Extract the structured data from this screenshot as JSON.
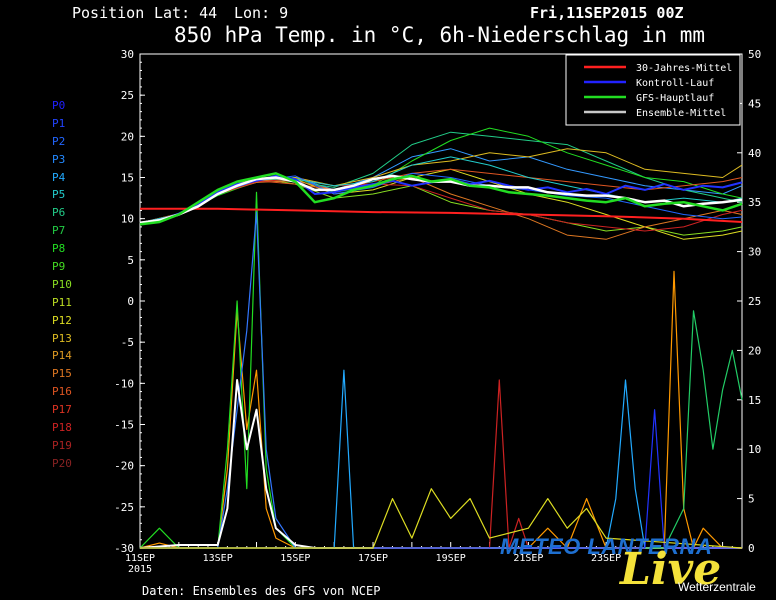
{
  "header": {
    "position_label": "Position",
    "lat_label": "Lat: 44",
    "lon_label": "Lon: 9",
    "date": "Fri,11SEP2015 00Z",
    "title": "850 hPa Temp. in °C, 6h-Niederschlag in mm"
  },
  "footer": {
    "source": "Daten: Ensembles des GFS von NCEP"
  },
  "logo": {
    "text": "METEO LANTERNA",
    "live": "Live",
    "sub": "Wetterzentrale"
  },
  "members": [
    {
      "name": "P0",
      "color": "#2020ff"
    },
    {
      "name": "P1",
      "color": "#2244ff"
    },
    {
      "name": "P2",
      "color": "#2266ff"
    },
    {
      "name": "P3",
      "color": "#2288ff"
    },
    {
      "name": "P4",
      "color": "#22aaff"
    },
    {
      "name": "P5",
      "color": "#22cccc"
    },
    {
      "name": "P6",
      "color": "#22cc88"
    },
    {
      "name": "P7",
      "color": "#22cc44"
    },
    {
      "name": "P8",
      "color": "#22dd22"
    },
    {
      "name": "P9",
      "color": "#44dd22"
    },
    {
      "name": "P10",
      "color": "#88dd22"
    },
    {
      "name": "P11",
      "color": "#bbdd22"
    },
    {
      "name": "P12",
      "color": "#dddd22"
    },
    {
      "name": "P13",
      "color": "#ddbb22"
    },
    {
      "name": "P14",
      "color": "#dd9922"
    },
    {
      "name": "P15",
      "color": "#dd7722"
    },
    {
      "name": "P16",
      "color": "#dd5522"
    },
    {
      "name": "P17",
      "color": "#dd3322"
    },
    {
      "name": "P18",
      "color": "#cc2222"
    },
    {
      "name": "P19",
      "color": "#aa2222"
    },
    {
      "name": "P20",
      "color": "#882222"
    }
  ],
  "chart_data": {
    "type": "line",
    "title": "850 hPa Temp. in °C, 6h-Niederschlag in mm",
    "xlabel": "",
    "ylabel": "",
    "x_tick_labels": [
      "11SEP",
      "13SEP",
      "15SEP",
      "17SEP",
      "19SEP",
      "21SEP",
      "23SEP"
    ],
    "x_tick_sub": "2015",
    "x_tick_days": [
      0,
      2,
      4,
      6,
      8,
      10,
      12
    ],
    "xlim_days": [
      0,
      15.5
    ],
    "y_left_ticks": [
      30,
      25,
      20,
      15,
      10,
      5,
      0,
      -5,
      -10,
      -15,
      -20,
      -25,
      -30
    ],
    "y_left_range": [
      -30,
      30
    ],
    "y_right_ticks": [
      50,
      45,
      40,
      35,
      30,
      25,
      20,
      15,
      10,
      5,
      0
    ],
    "y_right_range": [
      0,
      50
    ],
    "legend": [
      {
        "name": "30-Jahres-Mittel",
        "color": "#ff2020"
      },
      {
        "name": "Kontroll-Lauf",
        "color": "#2222ff"
      },
      {
        "name": "GFS-Hauptlauf",
        "color": "#22dd22"
      },
      {
        "name": "Ensemble-Mittel",
        "color": "#c8c8c8"
      }
    ],
    "legend_position": "top-right",
    "grid": false,
    "series": [
      {
        "name": "30-Jahres-Mittel",
        "color": "#ff2020",
        "width": 2,
        "x": [
          0,
          2,
          4,
          6,
          8,
          10,
          12,
          14,
          15.5
        ],
        "y": [
          11.2,
          11.2,
          11.0,
          10.8,
          10.7,
          10.5,
          10.3,
          10.0,
          9.6
        ]
      },
      {
        "name": "Ensemble-Mittel",
        "color": "#ffffff",
        "width": 2.5,
        "x": [
          0,
          0.5,
          1,
          1.5,
          2,
          2.5,
          3,
          3.5,
          4,
          4.5,
          5,
          5.5,
          6,
          6.5,
          7,
          7.5,
          8,
          8.5,
          9,
          9.5,
          10,
          10.5,
          11,
          11.5,
          12,
          12.5,
          13,
          13.5,
          14,
          14.5,
          15,
          15.5
        ],
        "y": [
          9.5,
          9.8,
          10.5,
          11.5,
          13.0,
          14.0,
          14.8,
          15.0,
          14.5,
          13.5,
          13.5,
          14.0,
          14.8,
          15.2,
          14.8,
          14.5,
          14.5,
          14.0,
          14.0,
          13.8,
          13.8,
          13.2,
          13.0,
          12.8,
          12.8,
          12.5,
          12.0,
          12.2,
          11.5,
          11.8,
          12.0,
          12.3
        ]
      },
      {
        "name": "GFS-Hauptlauf",
        "color": "#22dd22",
        "width": 2.5,
        "x": [
          0,
          0.5,
          1,
          1.5,
          2,
          2.5,
          3,
          3.5,
          4,
          4.5,
          5,
          5.5,
          6,
          6.5,
          7,
          7.5,
          8,
          8.5,
          9,
          9.5,
          10,
          10.5,
          11,
          11.5,
          12,
          12.5,
          13,
          13.5,
          14,
          14.5,
          15,
          15.5
        ],
        "y": [
          9.3,
          9.6,
          10.5,
          12.0,
          13.5,
          14.5,
          15.0,
          15.5,
          14.5,
          12.0,
          12.5,
          13.5,
          14.0,
          14.8,
          15.2,
          14.5,
          14.8,
          14.0,
          13.8,
          13.2,
          13.0,
          12.8,
          12.5,
          12.2,
          12.0,
          12.5,
          11.5,
          11.8,
          12.0,
          11.5,
          11.0,
          11.8
        ]
      },
      {
        "name": "Kontroll-Lauf",
        "color": "#2233ff",
        "width": 2,
        "x": [
          0,
          0.5,
          1,
          1.5,
          2,
          2.5,
          3,
          3.5,
          4,
          4.5,
          5,
          5.5,
          6,
          6.5,
          7,
          7.5,
          8,
          8.5,
          9,
          9.5,
          10,
          10.5,
          11,
          11.5,
          12,
          12.5,
          13,
          13.5,
          14,
          14.5,
          15,
          15.5
        ],
        "y": [
          9.5,
          9.8,
          10.6,
          11.8,
          13.2,
          14.2,
          14.6,
          15.2,
          14.8,
          13.0,
          13.2,
          13.8,
          14.2,
          14.6,
          14.0,
          14.4,
          14.8,
          14.2,
          14.6,
          14.0,
          13.5,
          13.8,
          13.2,
          13.6,
          13.0,
          14.0,
          13.5,
          14.2,
          13.5,
          14.0,
          13.8,
          14.4
        ]
      },
      {
        "name": "P3",
        "color": "#3399ff",
        "width": 1,
        "x": [
          0,
          1,
          2,
          3,
          4,
          5,
          6,
          7,
          8,
          9,
          10,
          11,
          12,
          13,
          14,
          15,
          15.5
        ],
        "y": [
          9.5,
          10.5,
          13.0,
          14.5,
          15.0,
          13.5,
          15.0,
          17.5,
          18.5,
          17.0,
          17.5,
          16.0,
          15.0,
          14.0,
          13.5,
          13.0,
          14.0
        ]
      },
      {
        "name": "P6",
        "color": "#22cc88",
        "width": 1,
        "x": [
          0,
          1,
          2,
          3,
          4,
          5,
          6,
          7,
          8,
          9,
          10,
          11,
          12,
          13,
          14,
          15,
          15.5
        ],
        "y": [
          9.5,
          10.5,
          13.2,
          14.8,
          14.5,
          13.8,
          15.5,
          19.0,
          20.5,
          20.0,
          19.5,
          19.0,
          17.0,
          15.0,
          13.5,
          12.5,
          12.0
        ]
      },
      {
        "name": "P8",
        "color": "#22dd22",
        "width": 1,
        "x": [
          0,
          1,
          2,
          3,
          4,
          5,
          6,
          7,
          8,
          9,
          10,
          11,
          12,
          13,
          14,
          15,
          15.5
        ],
        "y": [
          9.5,
          10.4,
          12.8,
          14.5,
          15.0,
          13.2,
          14.0,
          17.0,
          19.5,
          21.0,
          20.0,
          18.0,
          16.5,
          15.0,
          14.5,
          13.0,
          12.5
        ]
      },
      {
        "name": "P10",
        "color": "#88dd22",
        "width": 1,
        "x": [
          0,
          1,
          2,
          3,
          4,
          5,
          6,
          7,
          8,
          9,
          10,
          11,
          12,
          13,
          14,
          15,
          15.5
        ],
        "y": [
          9.5,
          10.6,
          13.5,
          15.0,
          14.2,
          12.5,
          13.0,
          14.0,
          12.0,
          11.0,
          10.5,
          9.5,
          8.5,
          9.0,
          8.0,
          8.5,
          9.0
        ]
      },
      {
        "name": "P12",
        "color": "#dddd22",
        "width": 1,
        "x": [
          0,
          1,
          2,
          3,
          4,
          5,
          6,
          7,
          8,
          9,
          10,
          11,
          12,
          13,
          14,
          15,
          15.5
        ],
        "y": [
          9.5,
          10.5,
          13.0,
          14.6,
          14.8,
          13.0,
          13.5,
          15.0,
          16.0,
          14.5,
          13.0,
          12.0,
          10.5,
          9.0,
          7.5,
          8.0,
          8.5
        ]
      },
      {
        "name": "P13",
        "color": "#ddbb22",
        "width": 1,
        "x": [
          0,
          1,
          2,
          3,
          4,
          5,
          6,
          7,
          8,
          9,
          10,
          11,
          12,
          13,
          14,
          15,
          15.5
        ],
        "y": [
          9.5,
          10.5,
          13.2,
          14.4,
          15.0,
          14.0,
          15.0,
          16.5,
          17.0,
          18.0,
          17.5,
          18.5,
          18.0,
          16.0,
          15.5,
          15.0,
          16.5
        ]
      },
      {
        "name": "P15",
        "color": "#dd7722",
        "width": 1,
        "x": [
          0,
          1,
          2,
          3,
          4,
          5,
          6,
          7,
          8,
          9,
          10,
          11,
          12,
          13,
          14,
          15,
          15.5
        ],
        "y": [
          9.5,
          10.5,
          13.0,
          14.4,
          14.6,
          13.5,
          14.0,
          15.0,
          13.0,
          11.5,
          10.0,
          8.0,
          7.5,
          9.0,
          10.0,
          11.0,
          10.5
        ]
      },
      {
        "name": "P16",
        "color": "#dd5522",
        "width": 1,
        "x": [
          0,
          1,
          2,
          3,
          4,
          5,
          6,
          7,
          8,
          9,
          10,
          11,
          12,
          13,
          14,
          15,
          15.5
        ],
        "y": [
          9.5,
          10.6,
          13.3,
          14.6,
          14.2,
          13.5,
          14.5,
          15.5,
          16.0,
          15.5,
          15.0,
          14.5,
          14.0,
          13.5,
          14.0,
          14.5,
          15.0
        ]
      },
      {
        "name": "P18",
        "color": "#cc2222",
        "width": 1,
        "x": [
          0,
          1,
          2,
          3,
          4,
          5,
          6,
          7,
          8,
          9,
          10,
          11,
          12,
          13,
          14,
          15,
          15.5
        ],
        "y": [
          9.5,
          10.5,
          13.0,
          14.5,
          14.8,
          14.0,
          14.2,
          14.0,
          12.5,
          11.0,
          10.5,
          9.5,
          9.0,
          8.5,
          9.0,
          10.5,
          11.0
        ]
      },
      {
        "name": "P1",
        "color": "#2266ff",
        "width": 1,
        "x": [
          0,
          1,
          2,
          3,
          4,
          5,
          6,
          7,
          8,
          9,
          10,
          11,
          12,
          13,
          14,
          15,
          15.5
        ],
        "y": [
          9.5,
          10.5,
          13.1,
          14.6,
          15.2,
          13.0,
          13.8,
          15.5,
          15.0,
          14.0,
          13.5,
          12.8,
          12.5,
          11.5,
          10.5,
          10.0,
          10.2
        ]
      },
      {
        "name": "P5",
        "color": "#22cccc",
        "width": 1,
        "x": [
          0,
          1,
          2,
          3,
          4,
          5,
          6,
          7,
          8,
          9,
          10,
          11,
          12,
          13,
          14,
          15,
          15.5
        ],
        "y": [
          9.5,
          10.5,
          13.4,
          14.8,
          14.8,
          14.0,
          14.5,
          16.5,
          17.5,
          16.5,
          15.0,
          14.0,
          13.0,
          12.0,
          12.5,
          12.0,
          12.5
        ]
      }
    ],
    "precip_series": [
      {
        "name": "precip-early",
        "color": "#ff9900",
        "width": 1.2,
        "x": [
          0,
          0.5,
          1,
          1.5,
          2,
          2.25,
          2.5,
          2.75,
          3,
          3.25,
          3.5,
          4,
          4.5,
          5,
          15.5
        ],
        "p": [
          0,
          0.5,
          0,
          0,
          0,
          8,
          24,
          12,
          18,
          4,
          1,
          0,
          0,
          0,
          0
        ]
      },
      {
        "name": "precip-early-green",
        "color": "#22dd22",
        "width": 1.2,
        "x": [
          0,
          0.5,
          1,
          1.5,
          2,
          2.25,
          2.5,
          2.75,
          3,
          3.25,
          3.5,
          4,
          4.5,
          15.5
        ],
        "p": [
          0,
          2,
          0,
          0,
          0,
          10,
          25,
          6,
          36,
          8,
          2,
          0,
          0,
          0
        ]
      },
      {
        "name": "precip-early-blue",
        "color": "#3377ff",
        "width": 1.2,
        "x": [
          0,
          1,
          2,
          2.25,
          2.5,
          2.75,
          3,
          3.25,
          3.5,
          4,
          15.5
        ],
        "p": [
          0,
          0,
          0,
          6,
          14,
          22,
          34,
          10,
          3,
          0,
          0
        ]
      },
      {
        "name": "precip-early-white",
        "color": "#ffffff",
        "width": 2,
        "x": [
          0,
          1,
          2,
          2.25,
          2.5,
          2.75,
          3,
          3.25,
          3.5,
          4,
          4.5,
          15.5
        ],
        "p": [
          0,
          0.3,
          0.3,
          4,
          17,
          10,
          14,
          6,
          2,
          0.3,
          0,
          0
        ]
      },
      {
        "name": "precip-cyan",
        "color": "#22aaff",
        "width": 1.2,
        "x": [
          0,
          5,
          5.25,
          5.5,
          5.75,
          6,
          12,
          12.25,
          12.5,
          12.75,
          13,
          15.5
        ],
        "p": [
          0,
          0,
          18,
          0,
          0,
          0,
          0,
          5,
          17,
          6,
          0,
          0
        ]
      },
      {
        "name": "precip-red",
        "color": "#cc2222",
        "width": 1.2,
        "x": [
          0,
          8,
          9,
          9.25,
          9.5,
          9.75,
          10,
          15.5
        ],
        "p": [
          0,
          0,
          0,
          17,
          0,
          3,
          0,
          0
        ]
      },
      {
        "name": "precip-orange-late",
        "color": "#ff9900",
        "width": 1.2,
        "x": [
          0,
          10,
          10.5,
          11,
          11.5,
          12,
          13,
          13.5,
          13.75,
          14,
          14.25,
          14.5,
          15,
          15.5
        ],
        "p": [
          0,
          0,
          2,
          0,
          5,
          0,
          0,
          0,
          28,
          4,
          0,
          2,
          0,
          0
        ]
      },
      {
        "name": "precip-green-late",
        "color": "#22cc66",
        "width": 1.2,
        "x": [
          0,
          13,
          13.5,
          14,
          14.25,
          14.5,
          14.75,
          15,
          15.25,
          15.5
        ],
        "p": [
          0,
          0,
          0,
          4,
          24,
          18,
          10,
          16,
          20,
          15
        ]
      },
      {
        "name": "precip-blue-late",
        "color": "#2233ff",
        "width": 1.2,
        "x": [
          0,
          12.5,
          13,
          13.25,
          13.5,
          13.75,
          14,
          15.5
        ],
        "p": [
          0,
          0,
          0,
          14,
          0,
          0,
          0,
          0
        ]
      },
      {
        "name": "precip-yellow-late",
        "color": "#dddd22",
        "width": 1.2,
        "x": [
          0,
          6,
          6.5,
          7,
          7.5,
          8,
          8.5,
          9,
          10,
          10.5,
          11,
          11.5,
          12,
          15.5
        ],
        "p": [
          0,
          0,
          5,
          1,
          6,
          3,
          5,
          1,
          2,
          5,
          2,
          4,
          1,
          0
        ]
      }
    ]
  }
}
